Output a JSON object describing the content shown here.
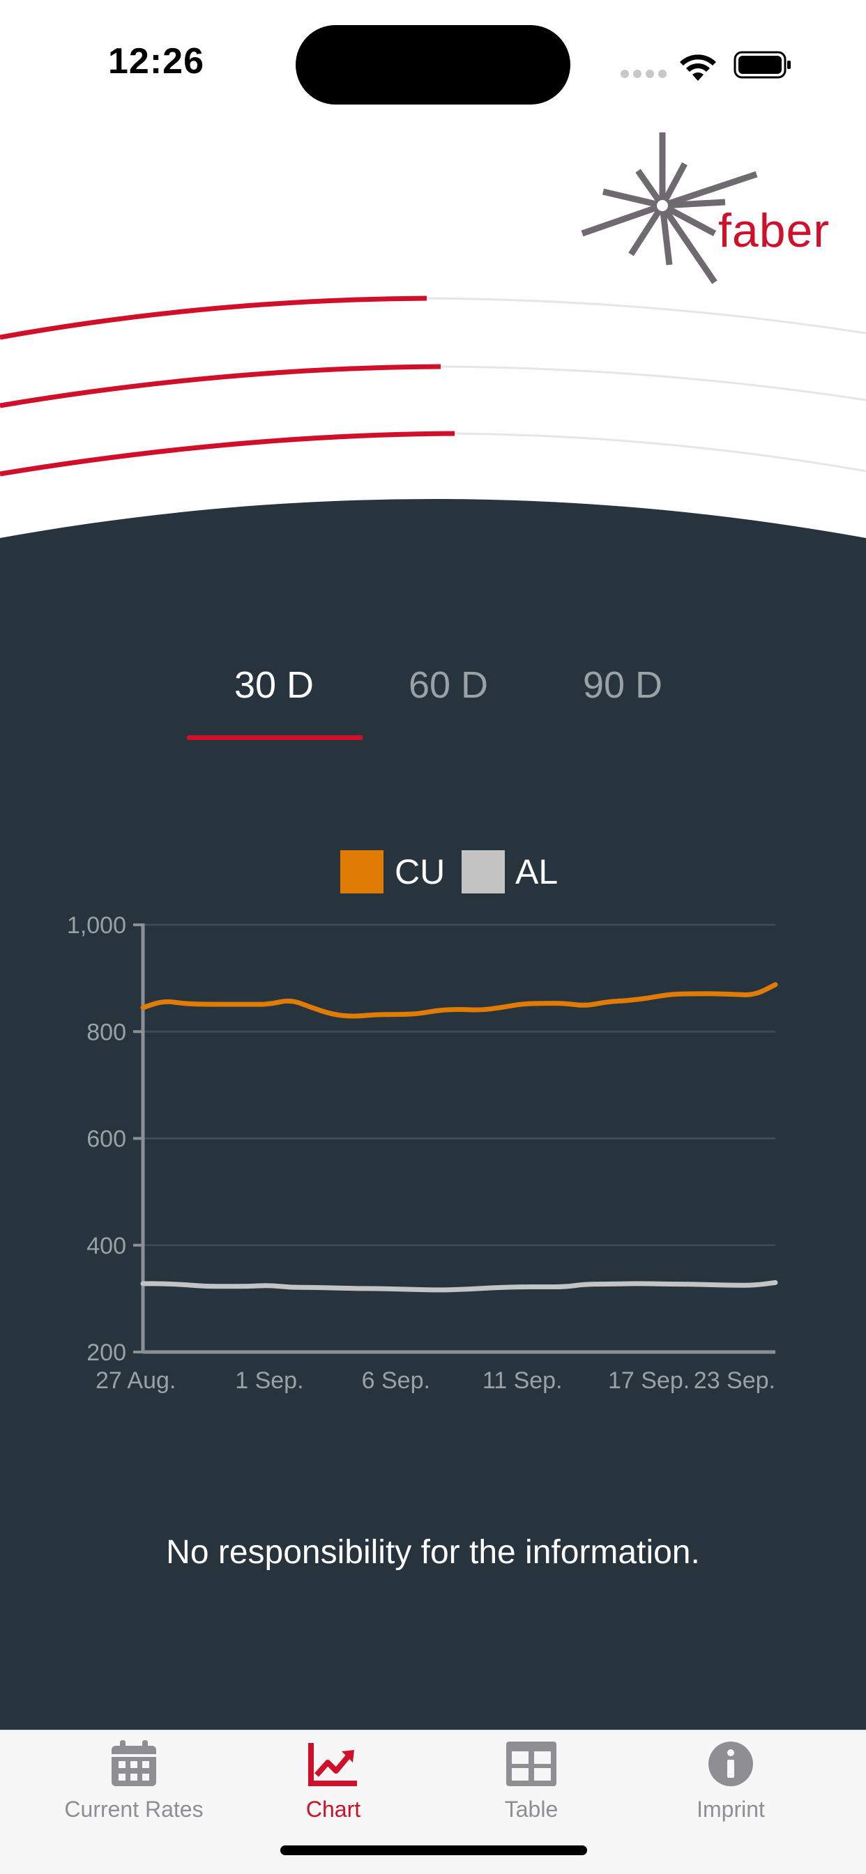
{
  "status_bar": {
    "time": "12:26"
  },
  "brand": {
    "logo_text": "faber",
    "accent_color": "#d0102a"
  },
  "range_tabs": [
    {
      "label": "30 D",
      "selected": true
    },
    {
      "label": "60 D",
      "selected": false
    },
    {
      "label": "90 D",
      "selected": false
    }
  ],
  "chart_data": {
    "type": "line",
    "title": "",
    "xlabel": "",
    "ylabel": "",
    "ylim": [
      200,
      1000
    ],
    "y_ticks": [
      "200",
      "400",
      "600",
      "800",
      "1,000"
    ],
    "x_tick_labels": [
      "27 Aug.",
      "1 Sep.",
      "6 Sep.",
      "11 Sep.",
      "17 Sep.",
      "23 Sep."
    ],
    "grid": true,
    "legend_position": "top-center",
    "series": [
      {
        "name": "CU",
        "color": "#e07b06",
        "values": [
          845,
          858,
          852,
          851,
          851,
          851,
          851,
          860,
          845,
          832,
          828,
          832,
          832,
          833,
          840,
          842,
          840,
          845,
          852,
          853,
          853,
          848,
          856,
          858,
          863,
          870,
          871,
          871,
          870,
          868,
          888
        ]
      },
      {
        "name": "AL",
        "color": "#c4c4c4",
        "values": [
          328,
          328,
          326,
          323,
          323,
          323,
          325,
          321,
          321,
          320,
          319,
          319,
          318,
          317,
          316,
          317,
          319,
          321,
          322,
          322,
          322,
          327,
          327,
          328,
          328,
          327,
          327,
          326,
          325,
          325,
          330
        ]
      }
    ]
  },
  "disclaimer": "No responsibility for the information.",
  "tab_bar": {
    "items": [
      {
        "label": "Current Rates",
        "icon": "calendar-icon",
        "active": false
      },
      {
        "label": "Chart",
        "icon": "chart-icon",
        "active": true
      },
      {
        "label": "Table",
        "icon": "table-icon",
        "active": false
      },
      {
        "label": "Imprint",
        "icon": "info-icon",
        "active": false
      }
    ],
    "active_color": "#d0102a",
    "inactive_color": "#8e8e93"
  },
  "colors": {
    "panel_background": "#27333d",
    "cu": "#e07b06",
    "al": "#c4c4c4"
  }
}
